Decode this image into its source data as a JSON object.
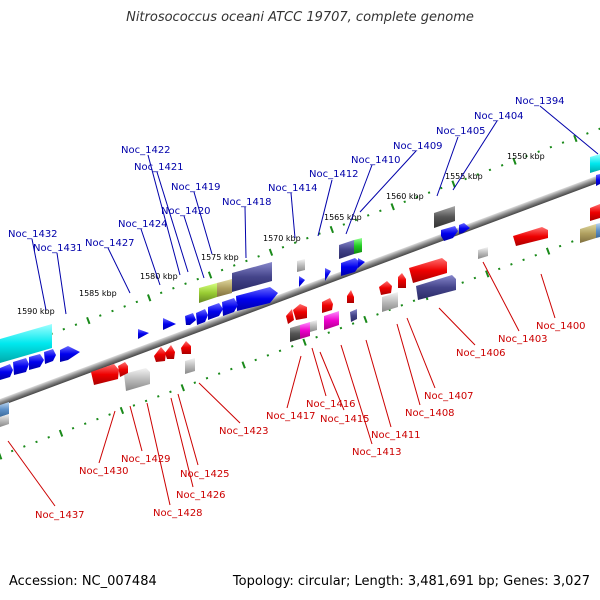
{
  "title": "Nitrosococcus oceani ATCC 19707, complete genome",
  "footer": {
    "accession": "Accession: NC_007484",
    "info": "Topology: circular; Length: 3,481,691 bp; Genes: 3,027"
  },
  "colors": {
    "forward_label": "#0000aa",
    "reverse_label": "#cc0000",
    "backbone": "#808080",
    "scale_ticks": "#1a8a1a"
  },
  "scale_labels": [
    "1550 kbp",
    "1555 kbp",
    "1560 kbp",
    "1565 kbp",
    "1570 kbp",
    "1575 kbp",
    "1580 kbp",
    "1585 kbp",
    "1590 kbp"
  ],
  "forward_labels": [
    "Noc_1394",
    "Noc_1404",
    "Noc_1405",
    "Noc_1409",
    "Noc_1410",
    "Noc_1412",
    "Noc_1414",
    "Noc_1418",
    "Noc_1419",
    "Noc_1420",
    "Noc_1421",
    "Noc_1422",
    "Noc_1424",
    "Noc_1427",
    "Noc_1431",
    "Noc_1432"
  ],
  "reverse_labels": [
    "Noc_1400",
    "Noc_1403",
    "Noc_1406",
    "Noc_1407",
    "Noc_1408",
    "Noc_1411",
    "Noc_1413",
    "Noc_1415",
    "Noc_1416",
    "Noc_1417",
    "Noc_1423",
    "Noc_1425",
    "Noc_1426",
    "Noc_1428",
    "Noc_1429",
    "Noc_1430",
    "Noc_1437"
  ]
}
